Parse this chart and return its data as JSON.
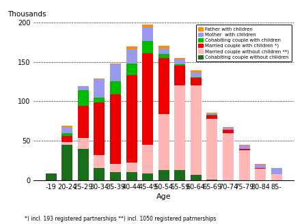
{
  "categories": [
    "-19",
    "20-24",
    "25-29",
    "30-34",
    "35-39",
    "40-44",
    "45-49",
    "50-54",
    "55-59",
    "60-64",
    "65-69",
    "70-74",
    "75-79",
    "80-84",
    "85-"
  ],
  "series": {
    "Cohabiting couple without children": [
      9,
      45,
      40,
      16,
      11,
      11,
      9,
      13,
      13,
      7,
      1,
      0,
      0,
      0,
      0
    ],
    "Married couple without children": [
      0,
      4,
      14,
      16,
      10,
      12,
      36,
      71,
      107,
      113,
      77,
      60,
      38,
      15,
      8
    ],
    "Married couple with children": [
      0,
      7,
      40,
      67,
      88,
      110,
      116,
      71,
      25,
      10,
      4,
      4,
      2,
      1,
      0
    ],
    "Cohabiting couple with children": [
      0,
      4,
      20,
      6,
      16,
      15,
      15,
      5,
      2,
      1,
      1,
      0,
      0,
      0,
      0
    ],
    "Mother with children": [
      0,
      8,
      5,
      23,
      22,
      18,
      18,
      7,
      6,
      6,
      2,
      3,
      4,
      4,
      8
    ],
    "Father with children": [
      0,
      1,
      0,
      1,
      1,
      3,
      3,
      3,
      2,
      2,
      1,
      1,
      1,
      1,
      0
    ]
  },
  "colors": {
    "Cohabiting couple without children": "#1a6e1a",
    "Married couple without children": "#ffb6b6",
    "Married couple with children": "#ee0000",
    "Cohabiting couple with children": "#00bb00",
    "Mother with children": "#9999ee",
    "Father with children": "#ff8c00"
  },
  "stack_order": [
    "Cohabiting couple without children",
    "Married couple without children",
    "Married couple with children",
    "Cohabiting couple with children",
    "Mother with children",
    "Father with children"
  ],
  "legend_labels": [
    "Father with children",
    "Mother  with children",
    "Cohabiting couple with children",
    "Married couple with children *)",
    "Married couple without children **)",
    "Cohabiting couple without children"
  ],
  "legend_colors": [
    "#ff8c00",
    "#9999ee",
    "#00bb00",
    "#ee0000",
    "#ffb6b6",
    "#1a6e1a"
  ],
  "ylabel": "Thousands",
  "xlabel": "Age",
  "ylim": [
    0,
    200
  ],
  "yticks": [
    0,
    50,
    100,
    150,
    200
  ],
  "footnote": "*) incl. 193 registered partnerships **) incl. 1050 registered patrnerships",
  "figwidth": 4.45,
  "figheight": 3.28,
  "dpi": 100
}
